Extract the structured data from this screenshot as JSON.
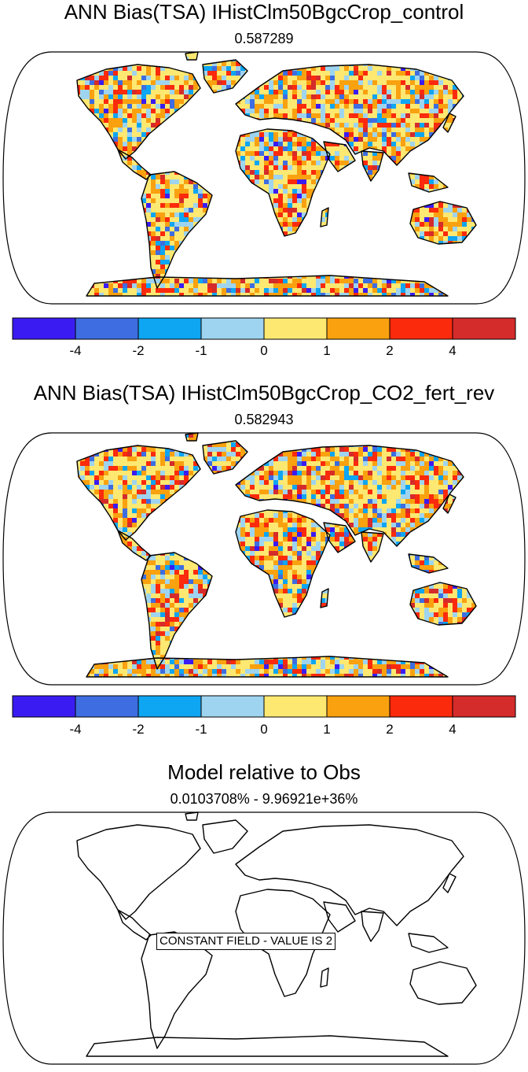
{
  "panels": [
    {
      "title": "ANN Bias(TSA) IHistClm50BgcCrop_control",
      "subtitle": "0.587289"
    },
    {
      "title": "ANN Bias(TSA) IHistClm50BgcCrop_CO2_fert_rev",
      "subtitle": "0.582943"
    },
    {
      "title": "Model relative to Obs",
      "subtitle": "0.0103708% - 9.96921e+36%"
    }
  ],
  "colorbar": {
    "colors": [
      "#3a1cf2",
      "#3d6de0",
      "#0ea5f2",
      "#9ed4ef",
      "#fde872",
      "#f9a10f",
      "#fb2a0c",
      "#d42b2b"
    ],
    "labels": [
      "-4",
      "-2",
      "-1",
      "0",
      "1",
      "2",
      "4"
    ]
  },
  "annotation": "CONSTANT FIELD - VALUE IS 2",
  "map_data": {
    "projection": "robinson",
    "field": "TSA annual mean bias",
    "contour_levels": [
      -4,
      -2,
      -1,
      0,
      1,
      2,
      4
    ]
  }
}
